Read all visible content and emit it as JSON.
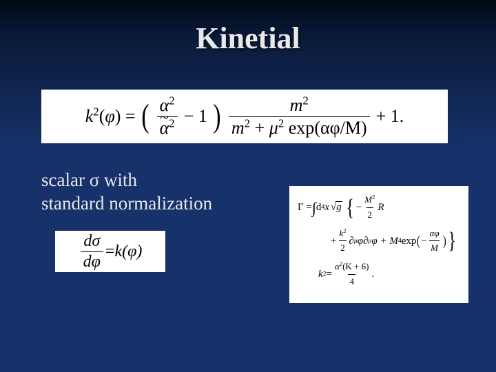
{
  "title": "Kinetial",
  "main_eq": {
    "lhs": "k",
    "lhs_sup": "2",
    "lhs_arg": "φ",
    "paren_frac_num": "α",
    "paren_frac_num_sup": "2",
    "paren_frac_den": "α",
    "paren_frac_den_sup": "2",
    "minus_one": "− 1",
    "big_frac_num": "m",
    "big_frac_num_sup": "2",
    "big_frac_den_a": "m",
    "big_frac_den_a_sup": "2",
    "plus": "+",
    "big_frac_den_b": "μ",
    "big_frac_den_b_sup": "2",
    "exp_label": "exp",
    "exp_arg": "(αφ/M)",
    "tail": "+ 1."
  },
  "scalar": {
    "line1_a": "scalar ",
    "line1_b": "σ",
    "line1_c": " with",
    "line2": "standard normalization"
  },
  "left_eq": {
    "num": "dσ",
    "den": "dφ",
    "eq": " = ",
    "rhs": "k(φ)"
  },
  "right_eq": {
    "g1_a": "Γ = ",
    "g1_int": "∫",
    "g1_d4x": " d",
    "g1_d4x_sup": "4",
    "g1_x": "x",
    "g1_sqrt": "g",
    "g1_minus": "−",
    "g1_M2": "M",
    "g1_M2_sup": "2",
    "g1_two": "2",
    "g1_R": "R",
    "g2_plus": "+ ",
    "g2_k2": "k",
    "g2_k2_sup": "2",
    "g2_two": "2",
    "g2_dmu": "∂",
    "g2_mu": "μ",
    "g2_phi": "φ∂",
    "g2_mu2": "μ",
    "g2_phi2": "φ + M",
    "g2_M4_sup": "4",
    "g2_exp": " exp",
    "g2_expfrac_minus": "−",
    "g2_expfrac_num": "αφ",
    "g2_expfrac_den": "M",
    "g3_a": "k",
    "g3_a_sup": "2",
    "g3_eq": " = ",
    "g3_num_a": "α",
    "g3_num_a_sup": "2",
    "g3_num_b": "(K + 6)",
    "g3_den": "4",
    "g3_dot": "."
  },
  "colors": {
    "bg_top": "#000814",
    "bg_mid": "#17316b",
    "panel": "#ffffff",
    "text_light": "#e8e8e8",
    "text_dark": "#000000"
  }
}
